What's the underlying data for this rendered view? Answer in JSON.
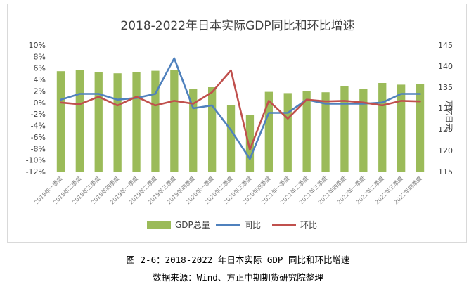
{
  "chart_data": {
    "type": "bar+line",
    "title": "2018-2022年日本实际GDP同比和环比增速",
    "categories": [
      "2018年一季度",
      "2018年二季度",
      "2018年三季度",
      "2018年四季度",
      "2019年一季度",
      "2019年二季度",
      "2019年三季度",
      "2019年四季度",
      "2020年一季度",
      "2020年二季度",
      "2020年三季度",
      "2020年四季度",
      "2021年一季度",
      "2021年二季度",
      "2021年三季度",
      "2021年四季度",
      "2022年一季度",
      "2022年二季度",
      "2022年三季度",
      "2022年四季度"
    ],
    "series": [
      {
        "name": "GDP总量",
        "kind": "bar",
        "axis": "right",
        "color": "#9bbb59",
        "values": [
          138.8,
          139.0,
          138.5,
          138.3,
          138.6,
          138.9,
          139.1,
          134.5,
          135.0,
          130.8,
          128.5,
          133.9,
          133.6,
          134.0,
          133.8,
          135.2,
          134.5,
          136.0,
          135.6,
          135.8
        ]
      },
      {
        "name": "同比",
        "kind": "line",
        "axis": "left",
        "color": "#4f81bd",
        "values": [
          0.5,
          1.5,
          1.5,
          0.5,
          0.8,
          1.5,
          7.7,
          -1.0,
          -0.5,
          -4.8,
          -9.8,
          -1.8,
          -1.8,
          0.5,
          -0.2,
          -0.2,
          -0.2,
          0.0,
          1.5,
          1.5
        ]
      },
      {
        "name": "环比",
        "kind": "line",
        "axis": "left",
        "color": "#c0504d",
        "values": [
          0.0,
          -0.3,
          1.0,
          -0.5,
          1.0,
          -0.5,
          0.3,
          -0.2,
          1.8,
          5.6,
          -8.2,
          0.3,
          -2.8,
          0.5,
          0.2,
          0.3,
          0.0,
          -0.5,
          0.3,
          0.2
        ]
      }
    ],
    "y_left": {
      "min": -12,
      "max": 10,
      "step": 2,
      "tick_labels": [
        "-12%",
        "-10%",
        "-8%",
        "-6%",
        "-4%",
        "-2%",
        "0%",
        "2%",
        "4%",
        "6%",
        "8%",
        "10%"
      ]
    },
    "y_right": {
      "min": 115,
      "max": 145,
      "step": 5,
      "label": "万亿日元",
      "tick_labels": [
        "115",
        "120",
        "125",
        "130",
        "135",
        "140",
        "145"
      ]
    },
    "grid": false,
    "legend_position": "bottom"
  },
  "caption": {
    "title": "图 2-6：2018-2022 年日本实际 GDP 同比和环比增速",
    "source": "数据来源：Wind、方正中期期货研究院整理"
  }
}
